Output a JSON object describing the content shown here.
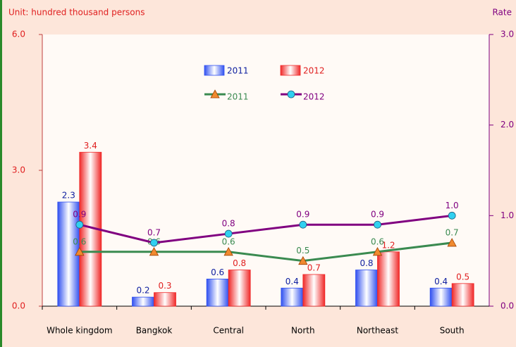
{
  "chart_data": {
    "type": "bar",
    "left_label": "Unit: hundred thousand persons",
    "right_label": "Rate",
    "categories": [
      "Whole kingdom",
      "Bangkok",
      "Central",
      "North",
      "Northeast",
      "South"
    ],
    "series": [
      {
        "name": "2011",
        "type": "bar",
        "color": "#3050f0",
        "values": [
          2.3,
          0.2,
          0.6,
          0.4,
          0.8,
          0.4
        ]
      },
      {
        "name": "2012",
        "type": "bar",
        "color": "#f02828",
        "values": [
          3.4,
          0.3,
          0.8,
          0.7,
          1.2,
          0.5
        ]
      },
      {
        "name": "2011",
        "type": "line",
        "axis": "y2",
        "color": "#3a8a50",
        "marker_color": "#f08a30",
        "values": [
          0.6,
          0.6,
          0.6,
          0.5,
          0.6,
          0.7
        ]
      },
      {
        "name": "2012",
        "type": "line",
        "axis": "y2",
        "color": "#800080",
        "marker_color": "#30d0f0",
        "values": [
          0.9,
          0.7,
          0.8,
          0.9,
          0.9,
          1.0
        ],
        "value_labels": [
          "0.9",
          "0.7",
          "0.8",
          "0.9",
          "0.9",
          "1.0"
        ]
      }
    ],
    "ylim": [
      0,
      6
    ],
    "yticks": [
      {
        "value": 0,
        "label": "0.0"
      },
      {
        "value": 3,
        "label": "3.0"
      },
      {
        "value": 6,
        "label": "6.0"
      }
    ],
    "y2lim": [
      0,
      3
    ],
    "y2ticks": [
      {
        "value": 0,
        "label": "0.0"
      },
      {
        "value": 1,
        "label": "1.0"
      },
      {
        "value": 2,
        "label": "2.0"
      },
      {
        "value": 3,
        "label": "3.0"
      }
    ]
  }
}
